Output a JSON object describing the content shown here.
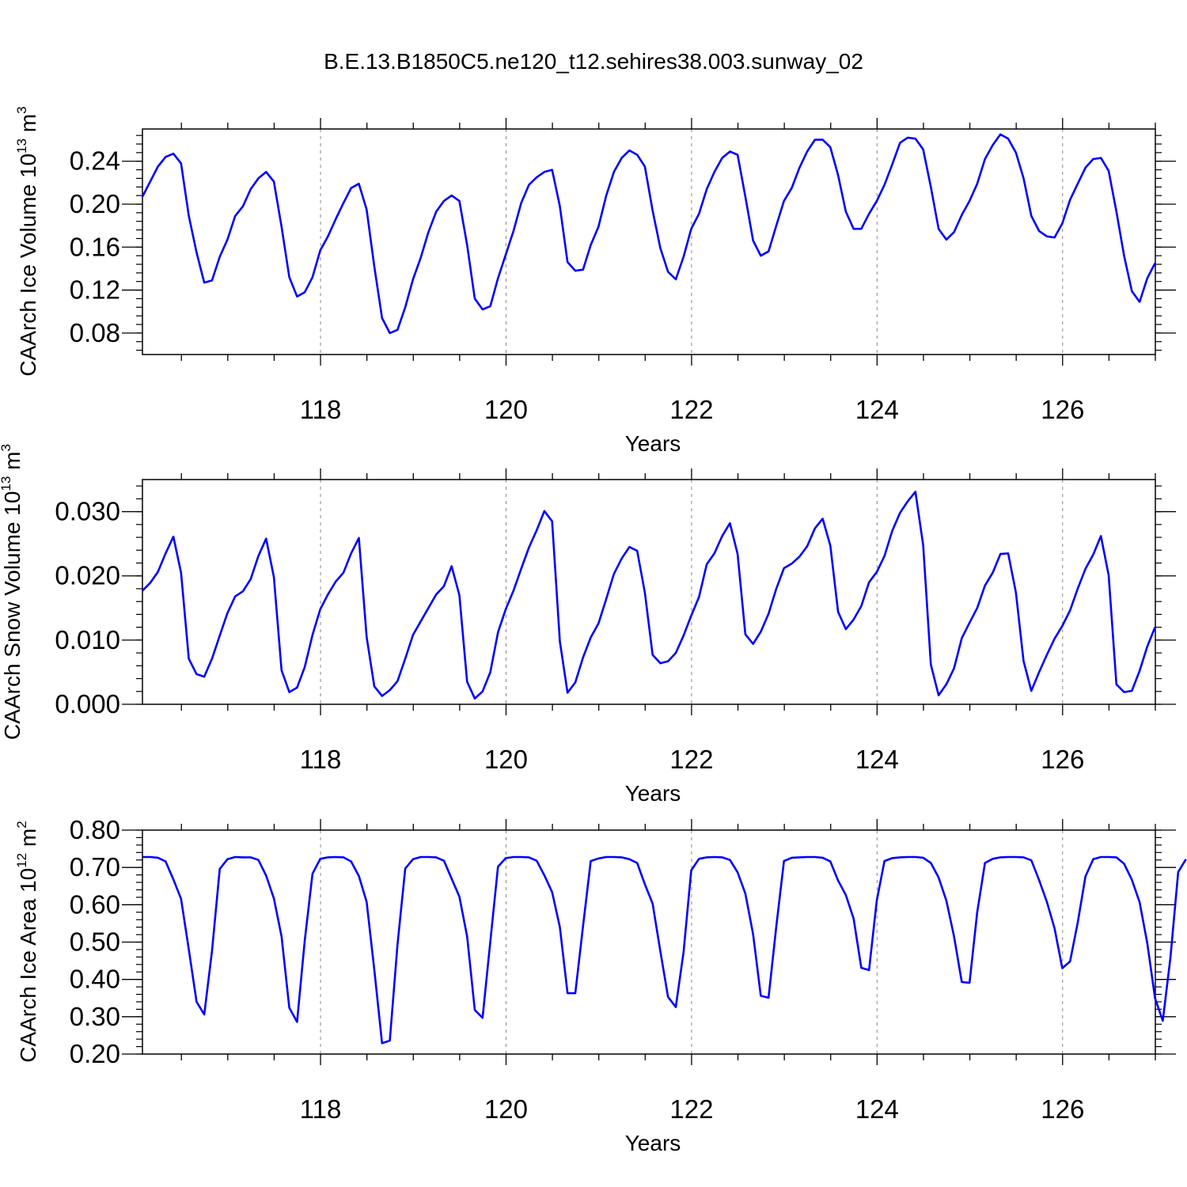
{
  "title": "B.E.13.B1850C5.ne120_t12.sehires38.003.sunway_02",
  "line_color": "#0000ff",
  "chart_data": [
    {
      "type": "line",
      "ylabel": "CAArch Ice Volume 10",
      "ylabel_exp": "13",
      "ylabel_unit": " m",
      "ylabel_unit_exp": "3",
      "xlabel": "Years",
      "xlim": [
        116.08,
        127.0
      ],
      "ylim": [
        0.06,
        0.27
      ],
      "yticks": [
        0.08,
        0.12,
        0.16,
        0.2,
        0.24
      ],
      "ytick_labels": [
        "0.08",
        "0.12",
        "0.16",
        "0.20",
        "0.24"
      ],
      "xticks": [
        118,
        120,
        122,
        124,
        126
      ],
      "xtick_labels": [
        "118",
        "120",
        "122",
        "124",
        "126"
      ],
      "grid": "dashed vertical at major x ticks",
      "x_start": 116.08,
      "x_step": 0.083333,
      "values": [
        0.207,
        0.221,
        0.235,
        0.244,
        0.247,
        0.238,
        0.189,
        0.155,
        0.127,
        0.129,
        0.151,
        0.167,
        0.189,
        0.198,
        0.214,
        0.224,
        0.23,
        0.221,
        0.179,
        0.132,
        0.114,
        0.118,
        0.132,
        0.157,
        0.17,
        0.186,
        0.201,
        0.215,
        0.219,
        0.195,
        0.142,
        0.094,
        0.08,
        0.083,
        0.104,
        0.13,
        0.15,
        0.174,
        0.193,
        0.203,
        0.208,
        0.203,
        0.162,
        0.112,
        0.102,
        0.105,
        0.131,
        0.153,
        0.175,
        0.201,
        0.218,
        0.225,
        0.23,
        0.232,
        0.198,
        0.146,
        0.138,
        0.139,
        0.162,
        0.179,
        0.208,
        0.23,
        0.243,
        0.25,
        0.246,
        0.235,
        0.194,
        0.159,
        0.137,
        0.13,
        0.151,
        0.177,
        0.191,
        0.214,
        0.23,
        0.243,
        0.249,
        0.246,
        0.207,
        0.166,
        0.152,
        0.156,
        0.18,
        0.203,
        0.215,
        0.234,
        0.249,
        0.26,
        0.26,
        0.253,
        0.227,
        0.193,
        0.177,
        0.177,
        0.191,
        0.203,
        0.218,
        0.237,
        0.257,
        0.262,
        0.261,
        0.251,
        0.216,
        0.177,
        0.167,
        0.174,
        0.19,
        0.203,
        0.219,
        0.242,
        0.255,
        0.265,
        0.261,
        0.248,
        0.224,
        0.189,
        0.175,
        0.17,
        0.169,
        0.182,
        0.204,
        0.219,
        0.234,
        0.242,
        0.243,
        0.231,
        0.193,
        0.152,
        0.119,
        0.109,
        0.131,
        0.145
      ]
    },
    {
      "type": "line",
      "ylabel": "CAArch Snow Volume 10",
      "ylabel_exp": "13",
      "ylabel_unit": " m",
      "ylabel_unit_exp": "3",
      "xlabel": "Years",
      "xlim": [
        116.08,
        127.0
      ],
      "ylim": [
        0.0,
        0.035
      ],
      "yticks": [
        0.0,
        0.01,
        0.02,
        0.03
      ],
      "ytick_labels": [
        "0.000",
        "0.010",
        "0.020",
        "0.030"
      ],
      "xticks": [
        118,
        120,
        122,
        124,
        126
      ],
      "xtick_labels": [
        "118",
        "120",
        "122",
        "124",
        "126"
      ],
      "grid": "dashed vertical at major x ticks",
      "x_start": 116.08,
      "x_step": 0.083333,
      "values": [
        0.0177,
        0.0189,
        0.0206,
        0.0235,
        0.0261,
        0.0205,
        0.0071,
        0.0047,
        0.0043,
        0.0071,
        0.0107,
        0.0142,
        0.0168,
        0.0176,
        0.0195,
        0.0231,
        0.0258,
        0.0198,
        0.0053,
        0.0019,
        0.0026,
        0.0058,
        0.0108,
        0.0148,
        0.0171,
        0.0191,
        0.0205,
        0.0235,
        0.0259,
        0.0105,
        0.0028,
        0.0013,
        0.0022,
        0.0036,
        0.0071,
        0.0108,
        0.0129,
        0.015,
        0.0171,
        0.0184,
        0.0215,
        0.017,
        0.0035,
        0.0009,
        0.002,
        0.005,
        0.0112,
        0.0148,
        0.0177,
        0.0211,
        0.0244,
        0.0271,
        0.0301,
        0.0285,
        0.0098,
        0.0018,
        0.0034,
        0.0073,
        0.0104,
        0.0126,
        0.0164,
        0.0203,
        0.0227,
        0.0245,
        0.0239,
        0.0174,
        0.0077,
        0.0064,
        0.0067,
        0.008,
        0.0107,
        0.0138,
        0.0167,
        0.0218,
        0.0235,
        0.0262,
        0.0282,
        0.0234,
        0.0109,
        0.0094,
        0.0113,
        0.0141,
        0.018,
        0.0212,
        0.0219,
        0.023,
        0.0246,
        0.0274,
        0.0289,
        0.0247,
        0.0144,
        0.0117,
        0.0132,
        0.0153,
        0.019,
        0.0206,
        0.0231,
        0.027,
        0.0298,
        0.0316,
        0.0331,
        0.0248,
        0.0062,
        0.0014,
        0.0031,
        0.0056,
        0.0103,
        0.0127,
        0.015,
        0.0185,
        0.0205,
        0.0234,
        0.0235,
        0.0174,
        0.0067,
        0.0021,
        0.005,
        0.0077,
        0.0102,
        0.0122,
        0.0146,
        0.018,
        0.0211,
        0.0233,
        0.0262,
        0.0201,
        0.0031,
        0.0019,
        0.0021,
        0.0052,
        0.009,
        0.012
      ]
    },
    {
      "type": "line",
      "ylabel": "CAArch Ice Area 10",
      "ylabel_exp": "12",
      "ylabel_unit": " m",
      "ylabel_unit_exp": "2",
      "xlabel": "Years",
      "xlim": [
        116.08,
        127.0
      ],
      "ylim": [
        0.2,
        0.8
      ],
      "yticks": [
        0.2,
        0.3,
        0.4,
        0.5,
        0.6,
        0.7,
        0.8
      ],
      "ytick_labels": [
        "0.20",
        "0.30",
        "0.40",
        "0.50",
        "0.60",
        "0.70",
        "0.80"
      ],
      "xticks": [
        118,
        120,
        122,
        124,
        126
      ],
      "xtick_labels": [
        "118",
        "120",
        "122",
        "124",
        "126"
      ],
      "grid": "dashed vertical at major x ticks",
      "x_start": 116.08,
      "x_step": 0.083333,
      "values": [
        0.728,
        0.728,
        0.726,
        0.716,
        0.668,
        0.616,
        0.48,
        0.34,
        0.306,
        0.476,
        0.696,
        0.722,
        0.728,
        0.727,
        0.727,
        0.72,
        0.678,
        0.617,
        0.515,
        0.324,
        0.286,
        0.504,
        0.683,
        0.723,
        0.727,
        0.728,
        0.727,
        0.716,
        0.677,
        0.608,
        0.426,
        0.229,
        0.236,
        0.493,
        0.697,
        0.722,
        0.728,
        0.728,
        0.727,
        0.718,
        0.67,
        0.622,
        0.515,
        0.318,
        0.297,
        0.501,
        0.702,
        0.725,
        0.728,
        0.728,
        0.727,
        0.718,
        0.679,
        0.634,
        0.54,
        0.363,
        0.363,
        0.543,
        0.717,
        0.724,
        0.728,
        0.728,
        0.727,
        0.722,
        0.712,
        0.655,
        0.603,
        0.475,
        0.353,
        0.326,
        0.473,
        0.692,
        0.723,
        0.727,
        0.728,
        0.727,
        0.72,
        0.687,
        0.63,
        0.521,
        0.356,
        0.351,
        0.542,
        0.717,
        0.726,
        0.727,
        0.728,
        0.728,
        0.726,
        0.716,
        0.665,
        0.626,
        0.563,
        0.431,
        0.425,
        0.612,
        0.717,
        0.725,
        0.727,
        0.728,
        0.728,
        0.726,
        0.712,
        0.673,
        0.611,
        0.515,
        0.393,
        0.391,
        0.58,
        0.712,
        0.723,
        0.727,
        0.728,
        0.728,
        0.727,
        0.719,
        0.666,
        0.608,
        0.537,
        0.43,
        0.448,
        0.552,
        0.676,
        0.722,
        0.728,
        0.728,
        0.727,
        0.71,
        0.667,
        0.607,
        0.497,
        0.35,
        0.289,
        0.459,
        0.688,
        0.722
      ]
    }
  ]
}
